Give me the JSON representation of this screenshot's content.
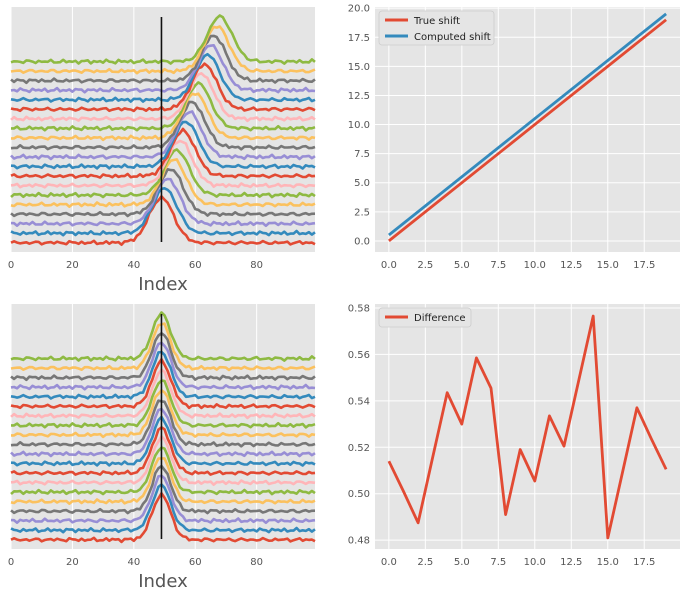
{
  "chart_data": [
    {
      "type": "line",
      "name": "shifted-peaks",
      "xlabel": "Index",
      "xlim": [
        0,
        99
      ],
      "xticks": [
        0,
        20,
        40,
        60,
        80
      ],
      "ylim": [
        -0.35,
        8.9
      ],
      "yticks_visible": false,
      "vline_x": 49,
      "peak_centers": [
        49,
        50,
        51,
        52,
        53,
        54,
        55,
        56,
        57,
        58,
        59,
        60,
        61,
        62,
        63,
        64,
        65,
        66,
        67,
        68
      ],
      "offset_step": 0.36,
      "peak_width": 4,
      "peak_height": 1.7,
      "series_count": 20
    },
    {
      "type": "line",
      "name": "shift-comparison",
      "xlim": [
        -0.95,
        19.95
      ],
      "ylim": [
        -0.95,
        20.1
      ],
      "xticks": [
        0.0,
        2.5,
        5.0,
        7.5,
        10.0,
        12.5,
        15.0,
        17.5
      ],
      "xtick_labels": [
        "0.0",
        "2.5",
        "5.0",
        "7.5",
        "10.0",
        "12.5",
        "15.0",
        "17.5"
      ],
      "yticks": [
        0.0,
        2.5,
        5.0,
        7.5,
        10.0,
        12.5,
        15.0,
        17.5,
        20.0
      ],
      "ytick_labels": [
        "0.0",
        "2.5",
        "5.0",
        "7.5",
        "10.0",
        "12.5",
        "15.0",
        "17.5",
        "20.0"
      ],
      "legend_position": "top-left",
      "series": [
        {
          "name": "True shift",
          "color": "#E24A33",
          "x": [
            0,
            19
          ],
          "y": [
            0.0,
            19.0
          ]
        },
        {
          "name": "Computed shift",
          "color": "#348ABD",
          "x": [
            0,
            19
          ],
          "y": [
            0.514,
            19.51
          ]
        }
      ]
    },
    {
      "type": "line",
      "name": "aligned-peaks",
      "xlabel": "Index",
      "xlim": [
        0,
        99
      ],
      "xticks": [
        0,
        20,
        40,
        60,
        80
      ],
      "ylim": [
        -0.35,
        8.9
      ],
      "yticks_visible": false,
      "vline_x": 49,
      "peak_centers": [
        49,
        49,
        49,
        49,
        49,
        49,
        49,
        49,
        49,
        49,
        49,
        49,
        49,
        49,
        49,
        49,
        49,
        49,
        49,
        49
      ],
      "offset_step": 0.36,
      "peak_width": 3,
      "peak_height": 1.7,
      "series_count": 20
    },
    {
      "type": "line",
      "name": "difference",
      "xlim": [
        -0.95,
        19.95
      ],
      "ylim": [
        0.4762,
        0.5817
      ],
      "xticks": [
        0.0,
        2.5,
        5.0,
        7.5,
        10.0,
        12.5,
        15.0,
        17.5
      ],
      "xtick_labels": [
        "0.0",
        "2.5",
        "5.0",
        "7.5",
        "10.0",
        "12.5",
        "15.0",
        "17.5"
      ],
      "yticks": [
        0.48,
        0.5,
        0.52,
        0.54,
        0.56,
        0.58
      ],
      "ytick_labels": [
        "0.48",
        "0.50",
        "0.52",
        "0.54",
        "0.56",
        "0.58"
      ],
      "legend_position": "top-left",
      "series": [
        {
          "name": "Difference",
          "color": "#E24A33",
          "x": [
            0,
            1,
            2,
            3,
            4,
            5,
            6,
            7,
            8,
            9,
            10,
            11,
            12,
            13,
            14,
            15,
            16,
            17,
            18,
            19
          ],
          "y": [
            0.514,
            0.501,
            0.4875,
            0.5155,
            0.5435,
            0.53,
            0.5585,
            0.5455,
            0.491,
            0.519,
            0.5055,
            0.5335,
            0.5205,
            0.5485,
            0.5765,
            0.481,
            0.509,
            0.537,
            0.5235,
            0.5105
          ]
        }
      ]
    }
  ],
  "palette": [
    "#E24A33",
    "#348ABD",
    "#988ED5",
    "#777777",
    "#FBC15E",
    "#8EBA42",
    "#FFB5B8"
  ]
}
